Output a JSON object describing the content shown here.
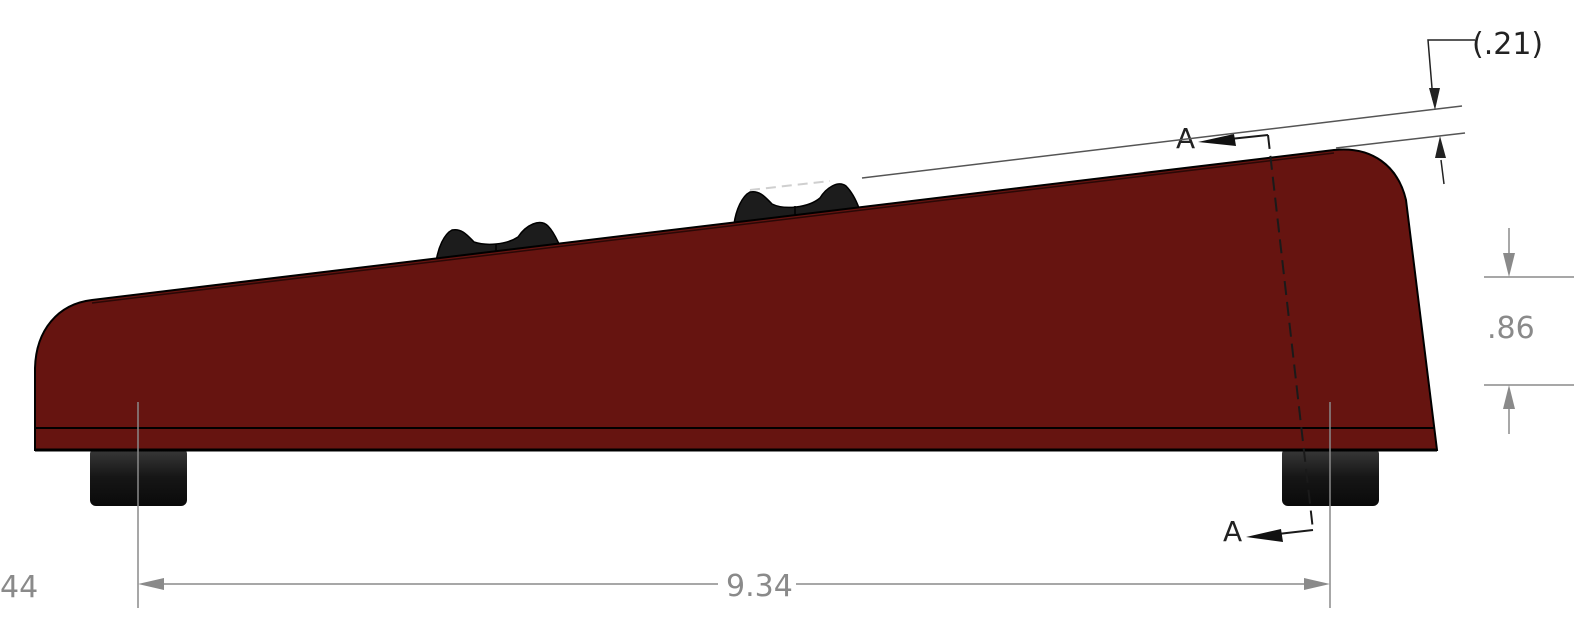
{
  "drawing": {
    "view": "side elevation",
    "body_color": "#661410",
    "knob_color": "#1c1c1c",
    "foot_color": "#141414",
    "dimension_color": "#8a8a8a",
    "annotation_color": "#222222"
  },
  "dimensions": {
    "left_cut": "44",
    "length": "9.34",
    "height": ".86",
    "offset": "(.21)"
  },
  "section": {
    "label_top": "A",
    "label_bottom": "A"
  }
}
